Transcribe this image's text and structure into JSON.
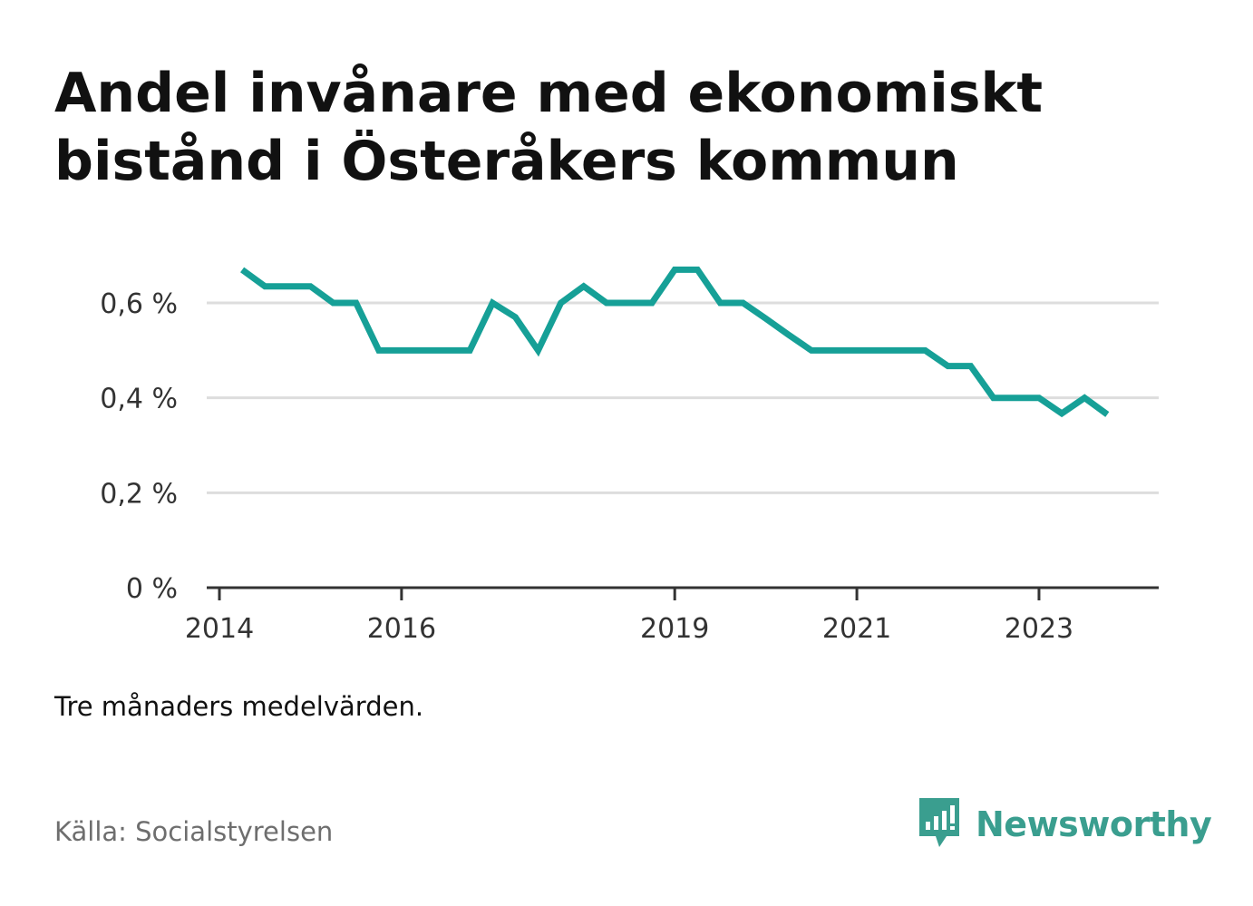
{
  "title": "Andel invånare med ekonomiskt bistånd i Österåkers kommun",
  "note": "Tre månaders medelvärden.",
  "source": "Källa: Socialstyrelsen",
  "brand": {
    "name": "Newsworthy",
    "icon": "bar-chart-speech-bubble-icon",
    "color": "#3a9e8f"
  },
  "chart_data": {
    "type": "line",
    "title": "Andel invånare med ekonomiskt bistånd i Österåkers kommun",
    "xlabel": "",
    "ylabel": "",
    "line_color": "#16a097",
    "grid": true,
    "x_ticks": [
      "2014",
      "2016",
      "2019",
      "2021",
      "2023"
    ],
    "y_ticks": [
      {
        "value": 0,
        "label": "0 %"
      },
      {
        "value": 0.2,
        "label": "0,2 %"
      },
      {
        "value": 0.4,
        "label": "0,4 %"
      },
      {
        "value": 0.6,
        "label": "0,6 %"
      }
    ],
    "xlim": [
      "2014-01",
      "2024-06"
    ],
    "ylim": [
      0,
      0.72
    ],
    "series": [
      {
        "x": [
          "2014-04",
          "2014-07",
          "2014-10",
          "2015-01",
          "2015-04",
          "2015-07",
          "2015-10",
          "2016-01",
          "2016-04",
          "2016-07",
          "2016-10",
          "2017-01",
          "2017-04",
          "2017-07",
          "2017-10",
          "2018-01",
          "2018-04",
          "2018-07",
          "2018-10",
          "2019-01",
          "2019-04",
          "2019-07",
          "2019-10",
          "2020-01",
          "2020-04",
          "2020-07",
          "2020-10",
          "2021-01",
          "2021-04",
          "2021-07",
          "2021-10",
          "2022-01",
          "2022-04",
          "2022-07",
          "2022-10",
          "2023-01",
          "2023-04",
          "2023-07",
          "2023-10"
        ],
        "values": [
          0.67,
          0.635,
          0.635,
          0.635,
          0.6,
          0.6,
          0.5,
          0.5,
          0.5,
          0.5,
          0.5,
          0.6,
          0.57,
          0.5,
          0.6,
          0.635,
          0.6,
          0.6,
          0.6,
          0.67,
          0.67,
          0.6,
          0.6,
          0.567,
          0.533,
          0.5,
          0.5,
          0.5,
          0.5,
          0.5,
          0.5,
          0.467,
          0.467,
          0.4,
          0.4,
          0.4,
          0.367,
          0.4,
          0.365
        ]
      }
    ]
  }
}
